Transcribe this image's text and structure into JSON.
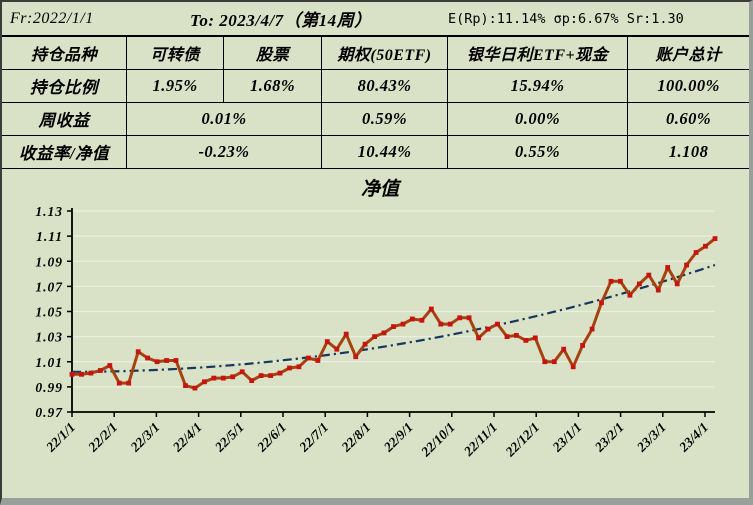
{
  "header": {
    "from_label": "Fr:2022/1/1",
    "to_label": "To: 2023/4/7（第14周）",
    "stats_label": "E(Rp):11.14%  σp:6.67% Sr:1.30"
  },
  "table": {
    "columns": [
      "持仓品种",
      "可转债",
      "股票",
      "期权(50ETF)",
      "银华日利ETF+现金",
      "账户总计"
    ],
    "rows": [
      {
        "label": "持仓比例",
        "cells": [
          {
            "text": "1.95%",
            "span": 1
          },
          {
            "text": "1.68%",
            "span": 1
          },
          {
            "text": "80.43%",
            "span": 1
          },
          {
            "text": "15.94%",
            "span": 1
          },
          {
            "text": "100.00%",
            "span": 1
          }
        ]
      },
      {
        "label": "周收益",
        "cells": [
          {
            "text": "0.01%",
            "span": 2
          },
          {
            "text": "0.59%",
            "span": 1
          },
          {
            "text": "0.00%",
            "span": 1
          },
          {
            "text": "0.60%",
            "span": 1
          }
        ]
      },
      {
        "label": "收益率/净值",
        "cells": [
          {
            "text": "-0.23%",
            "span": 2
          },
          {
            "text": "10.44%",
            "span": 1
          },
          {
            "text": "0.55%",
            "span": 1
          },
          {
            "text": "1.108",
            "span": 1
          }
        ]
      }
    ]
  },
  "colors": {
    "background": "#D9E2C6",
    "gridline": "#EAEFDC",
    "axis": "#000000",
    "net_value_line": "#A5420E",
    "marker": "#C81410",
    "trendline": "#17375E"
  },
  "chart_data": {
    "type": "line",
    "title": "净值",
    "xlabel": "",
    "ylabel": "",
    "ylim": [
      0.97,
      1.13
    ],
    "y_tick_step": 0.02,
    "grid": true,
    "legend": "none",
    "y_tick_labels": [
      "0.97",
      "0.99",
      "1.01",
      "1.03",
      "1.05",
      "1.07",
      "1.09",
      "1.11",
      "1.13"
    ],
    "x_tick_labels": [
      "22/1/1",
      "22/2/1",
      "22/3/1",
      "22/4/1",
      "22/5/1",
      "22/6/1",
      "22/7/1",
      "22/8/1",
      "22/9/1",
      "22/10/1",
      "22/11/1",
      "22/12/1",
      "23/1/1",
      "23/2/1",
      "23/3/1",
      "23/4/1"
    ],
    "x_note": "weekly net value points from 2022/1/1 to 2023/4/7 (week 14)",
    "series": [
      {
        "name": "净值",
        "style": "solid-with-markers",
        "color": "#A5420E",
        "marker_color": "#C81410",
        "values": [
          1.0,
          1.0,
          1.001,
          1.003,
          1.007,
          0.993,
          0.993,
          1.018,
          1.013,
          1.01,
          1.011,
          1.011,
          0.991,
          0.989,
          0.994,
          0.997,
          0.997,
          0.998,
          1.002,
          0.995,
          0.999,
          0.999,
          1.001,
          1.005,
          1.006,
          1.013,
          1.011,
          1.026,
          1.02,
          1.032,
          1.014,
          1.024,
          1.03,
          1.033,
          1.038,
          1.04,
          1.044,
          1.043,
          1.052,
          1.04,
          1.04,
          1.045,
          1.045,
          1.029,
          1.036,
          1.04,
          1.03,
          1.031,
          1.027,
          1.029,
          1.01,
          1.01,
          1.02,
          1.006,
          1.023,
          1.036,
          1.057,
          1.074,
          1.074,
          1.063,
          1.072,
          1.079,
          1.067,
          1.085,
          1.072,
          1.087,
          1.097,
          1.102,
          1.108
        ]
      },
      {
        "name": "趋势线",
        "style": "dash-dot",
        "color": "#17375E",
        "formula": {
          "start": 1.002,
          "quadratic_gain": 0.085,
          "end": 1.087
        }
      }
    ]
  }
}
